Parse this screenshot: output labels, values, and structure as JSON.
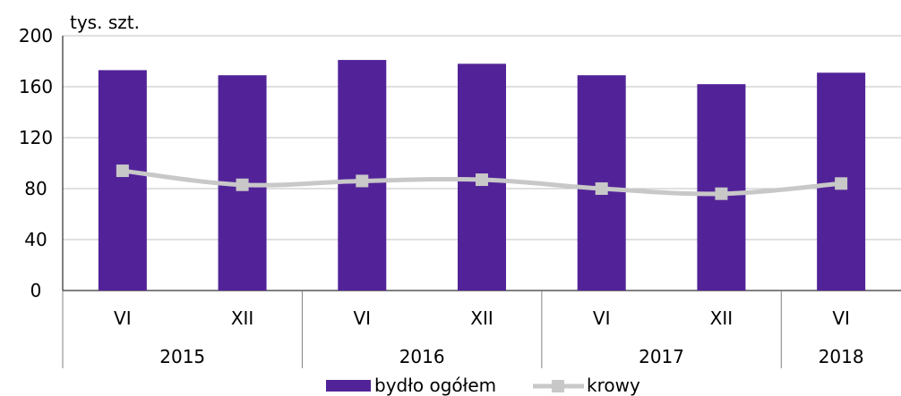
{
  "chart_data": {
    "type": "bar",
    "y_unit_label": "tys. szt.",
    "categories": [
      "VI",
      "XII",
      "VI",
      "XII",
      "VI",
      "XII",
      "VI"
    ],
    "year_groups": [
      {
        "label": "2015",
        "count": 2
      },
      {
        "label": "2016",
        "count": 2
      },
      {
        "label": "2017",
        "count": 2
      },
      {
        "label": "2018",
        "count": 1
      }
    ],
    "series": [
      {
        "name": "bydło ogółem",
        "type": "bar",
        "color": "#522398",
        "values": [
          173,
          169,
          181,
          178,
          169,
          162,
          171
        ]
      },
      {
        "name": "krowy",
        "type": "line",
        "color": "#c8c8c8",
        "marker": "square",
        "values": [
          94,
          83,
          86,
          87,
          80,
          76,
          84
        ]
      }
    ],
    "ylim": [
      0,
      200
    ],
    "yticks": [
      "0",
      "40",
      "80",
      "120",
      "160",
      "200"
    ],
    "grid": "horizontal",
    "legend_position": "bottom"
  }
}
